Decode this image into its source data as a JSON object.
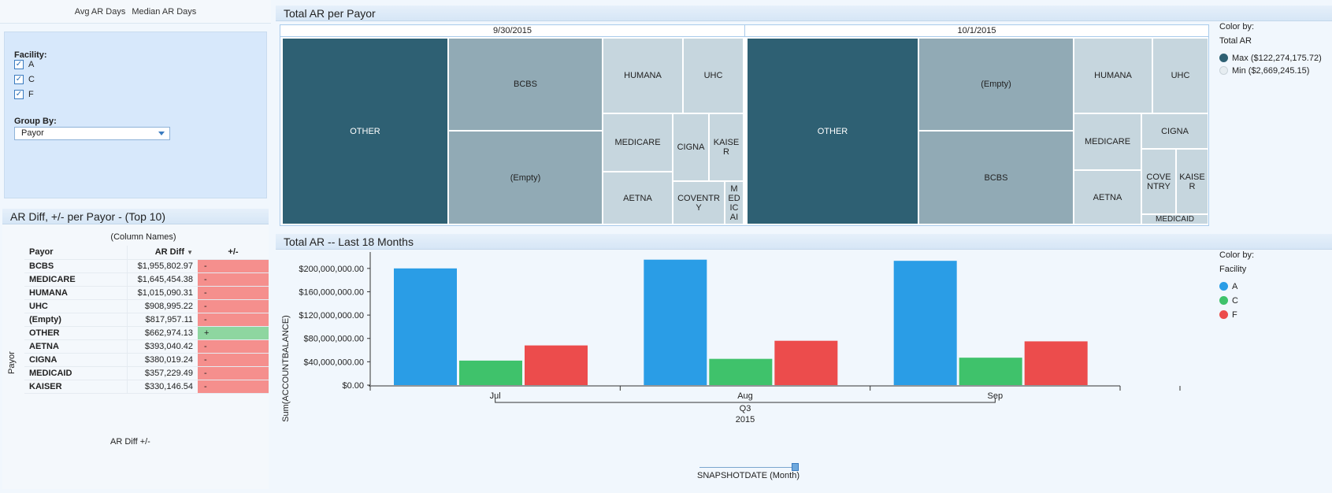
{
  "top_tabs": [
    "Avg AR Days",
    "Median AR Days"
  ],
  "filters": {
    "facility_label": "Facility:",
    "facilities": [
      "A",
      "C",
      "F"
    ],
    "groupby_label": "Group By:",
    "groupby_value": "Payor"
  },
  "ar_table": {
    "title": "AR Diff, +/- per Payor - (Top 10)",
    "column_names": "(Column Names)",
    "headers": [
      "Payor",
      "AR Diff",
      "+/-"
    ],
    "y_axis_label": "Payor",
    "footer": "AR Diff  +/-",
    "rows": [
      {
        "payor": "BCBS",
        "diff": "$1,955,802.97",
        "sign": "-"
      },
      {
        "payor": "MEDICARE",
        "diff": "$1,645,454.38",
        "sign": "-"
      },
      {
        "payor": "HUMANA",
        "diff": "$1,015,090.31",
        "sign": "-"
      },
      {
        "payor": "UHC",
        "diff": "$908,995.22",
        "sign": "-"
      },
      {
        "payor": "(Empty)",
        "diff": "$817,957.11",
        "sign": "-"
      },
      {
        "payor": "OTHER",
        "diff": "$662,974.13",
        "sign": "+"
      },
      {
        "payor": "AETNA",
        "diff": "$393,040.42",
        "sign": "-"
      },
      {
        "payor": "CIGNA",
        "diff": "$380,019.24",
        "sign": "-"
      },
      {
        "payor": "MEDICAID",
        "diff": "$357,229.49",
        "sign": "-"
      },
      {
        "payor": "KAISER",
        "diff": "$330,146.54",
        "sign": "-"
      }
    ]
  },
  "treemap": {
    "title": "Total AR per Payor",
    "dates": [
      "9/30/2015",
      "10/1/2015"
    ],
    "legend_title": "Color by:",
    "legend_sub": "Total AR",
    "legend_max": "Max ($122,274,175.72)",
    "legend_min": "Min ($2,669,245.15)",
    "max_color": "#2e6073",
    "min_color": "#e6edf1"
  },
  "chart_data": {
    "type": "bar",
    "title": "Total AR -- Last 18 Months",
    "ylabel": "Sum(ACCOUNTBALANCE)",
    "categories": [
      "Jul",
      "Aug",
      "Sep"
    ],
    "group_label": "Q3",
    "year_label": "2015",
    "slider_label": "SNAPSHOTDATE (Month)",
    "ylim": [
      0,
      220000000
    ],
    "yticks": [
      "$0.00",
      "$40,000,000.00",
      "$80,000,000.00",
      "$120,000,000.00",
      "$160,000,000.00",
      "$200,000,000.00"
    ],
    "ytick_values": [
      0,
      40000000,
      80000000,
      120000000,
      160000000,
      200000000
    ],
    "legend_title": "Color by:",
    "legend_sub": "Facility",
    "series": [
      {
        "name": "A",
        "color": "#2a9de6",
        "values": [
          200000000,
          215000000,
          213000000
        ]
      },
      {
        "name": "C",
        "color": "#3fc26b",
        "values": [
          42000000,
          45000000,
          47000000
        ]
      },
      {
        "name": "F",
        "color": "#ec4c4c",
        "values": [
          68000000,
          76000000,
          75000000
        ]
      }
    ]
  }
}
